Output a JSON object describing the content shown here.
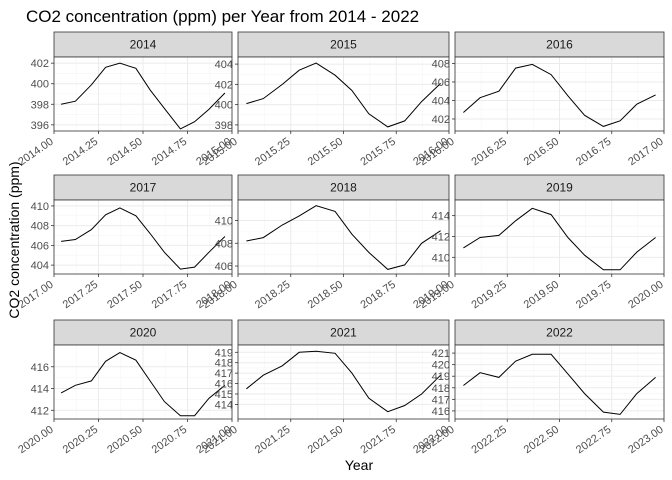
{
  "chart_data": {
    "type": "line",
    "title": "CO2 concentration (ppm) per Year from 2014 - 2022",
    "xlabel": "Year",
    "ylabel": "CO2 concentration (ppm)",
    "grid": true,
    "facets": [
      {
        "label": "2014",
        "xlim": [
          2014.0,
          2015.0
        ],
        "ylim": [
          395.4,
          402.6
        ],
        "xticks": [
          2014.0,
          2014.25,
          2014.5,
          2014.75,
          2015.0
        ],
        "xtick_labels": [
          "2014.00",
          "2014.25",
          "2014.50",
          "2014.75",
          "2015.00"
        ],
        "yticks": [
          396,
          398,
          400,
          402
        ],
        "x": [
          2014.04,
          2014.12,
          2014.21,
          2014.29,
          2014.37,
          2014.46,
          2014.54,
          2014.62,
          2014.71,
          2014.79,
          2014.87,
          2014.96
        ],
        "y": [
          398.0,
          398.3,
          399.9,
          401.6,
          402.0,
          401.5,
          399.4,
          397.6,
          395.6,
          396.3,
          397.5,
          399.1
        ]
      },
      {
        "label": "2015",
        "xlim": [
          2015.0,
          2016.0
        ],
        "ylim": [
          397.4,
          404.7
        ],
        "xticks": [
          2015.0,
          2015.25,
          2015.5,
          2015.75,
          2016.0
        ],
        "xtick_labels": [
          "2015.00",
          "2015.25",
          "2015.50",
          "2015.75",
          "2016.00"
        ],
        "yticks": [
          398,
          400,
          402,
          404
        ],
        "x": [
          2015.04,
          2015.12,
          2015.21,
          2015.29,
          2015.37,
          2015.46,
          2015.54,
          2015.62,
          2015.71,
          2015.79,
          2015.87,
          2015.96
        ],
        "y": [
          400.1,
          400.6,
          402.0,
          403.4,
          404.1,
          402.9,
          401.4,
          399.1,
          397.8,
          398.4,
          400.3,
          402.1
        ]
      },
      {
        "label": "2016",
        "xlim": [
          2016.0,
          2017.0
        ],
        "ylim": [
          400.7,
          408.7
        ],
        "xticks": [
          2016.0,
          2016.25,
          2016.5,
          2016.75,
          2017.0
        ],
        "xtick_labels": [
          "2016.00",
          "2016.25",
          "2016.50",
          "2016.75",
          "2017.00"
        ],
        "yticks": [
          402,
          404,
          406,
          408
        ],
        "x": [
          2016.04,
          2016.12,
          2016.21,
          2016.29,
          2016.37,
          2016.46,
          2016.54,
          2016.62,
          2016.71,
          2016.79,
          2016.87,
          2016.96
        ],
        "y": [
          402.7,
          404.3,
          405.0,
          407.5,
          407.9,
          406.8,
          404.5,
          402.4,
          401.2,
          401.8,
          403.6,
          404.6
        ]
      },
      {
        "label": "2017",
        "xlim": [
          2017.0,
          2018.0
        ],
        "ylim": [
          403.1,
          410.6
        ],
        "xticks": [
          2017.0,
          2017.25,
          2017.5,
          2017.75,
          2018.0
        ],
        "xtick_labels": [
          "2017.00",
          "2017.25",
          "2017.50",
          "2017.75",
          "2018.00"
        ],
        "yticks": [
          404,
          406,
          408,
          410
        ],
        "x": [
          2017.04,
          2017.12,
          2017.21,
          2017.29,
          2017.37,
          2017.46,
          2017.54,
          2017.62,
          2017.71,
          2017.79,
          2017.87,
          2017.96
        ],
        "y": [
          406.4,
          406.6,
          407.6,
          409.1,
          409.8,
          409.0,
          407.2,
          405.3,
          403.6,
          403.8,
          405.3,
          406.9
        ]
      },
      {
        "label": "2018",
        "xlim": [
          2018.0,
          2019.0
        ],
        "ylim": [
          405.3,
          411.8
        ],
        "xticks": [
          2018.0,
          2018.25,
          2018.5,
          2018.75,
          2019.0
        ],
        "xtick_labels": [
          "2018.00",
          "2018.25",
          "2018.50",
          "2018.75",
          "2019.00"
        ],
        "yticks": [
          406,
          408,
          410
        ],
        "x": [
          2018.04,
          2018.12,
          2018.21,
          2018.29,
          2018.37,
          2018.46,
          2018.54,
          2018.62,
          2018.71,
          2018.79,
          2018.87,
          2018.96
        ],
        "y": [
          408.2,
          408.5,
          409.6,
          410.4,
          411.3,
          410.8,
          408.8,
          407.2,
          405.7,
          406.1,
          408.0,
          409.1
        ]
      },
      {
        "label": "2019",
        "xlim": [
          2019.0,
          2020.0
        ],
        "ylim": [
          408.4,
          415.5
        ],
        "xticks": [
          2019.0,
          2019.25,
          2019.5,
          2019.75,
          2020.0
        ],
        "xtick_labels": [
          "2019.00",
          "2019.25",
          "2019.50",
          "2019.75",
          "2020.00"
        ],
        "yticks": [
          410,
          412,
          414
        ],
        "x": [
          2019.04,
          2019.12,
          2019.21,
          2019.29,
          2019.37,
          2019.46,
          2019.54,
          2019.62,
          2019.71,
          2019.79,
          2019.87,
          2019.96
        ],
        "y": [
          410.9,
          411.9,
          412.1,
          413.5,
          414.7,
          414.1,
          411.9,
          410.2,
          408.8,
          408.8,
          410.5,
          411.9
        ]
      },
      {
        "label": "2020",
        "xlim": [
          2020.0,
          2021.0
        ],
        "ylim": [
          411.2,
          418.0
        ],
        "xticks": [
          2020.0,
          2020.25,
          2020.5,
          2020.75,
          2021.0
        ],
        "xtick_labels": [
          "2020.00",
          "2020.25",
          "2020.50",
          "2020.75",
          "2021.00"
        ],
        "yticks": [
          412,
          414,
          416
        ],
        "x": [
          2020.04,
          2020.12,
          2020.21,
          2020.29,
          2020.37,
          2020.46,
          2020.54,
          2020.62,
          2020.71,
          2020.79,
          2020.87,
          2020.96
        ],
        "y": [
          413.6,
          414.3,
          414.7,
          416.5,
          417.3,
          416.6,
          414.7,
          412.8,
          411.5,
          411.5,
          413.1,
          414.3
        ]
      },
      {
        "label": "2021",
        "xlim": [
          2021.0,
          2022.0
        ],
        "ylim": [
          412.6,
          419.7
        ],
        "xticks": [
          2021.0,
          2021.25,
          2021.5,
          2021.75,
          2022.0
        ],
        "xtick_labels": [
          "2021.00",
          "2021.25",
          "2021.50",
          "2021.75",
          "2022.00"
        ],
        "yticks": [
          414,
          415,
          416,
          417,
          418,
          419
        ],
        "x": [
          2021.04,
          2021.12,
          2021.21,
          2021.29,
          2021.37,
          2021.46,
          2021.54,
          2021.62,
          2021.71,
          2021.79,
          2021.87,
          2021.96
        ],
        "y": [
          415.5,
          416.8,
          417.7,
          419.0,
          419.1,
          418.9,
          417.0,
          414.6,
          413.3,
          413.9,
          415.0,
          416.8
        ]
      },
      {
        "label": "2022",
        "xlim": [
          2022.0,
          2023.0
        ],
        "ylim": [
          415.3,
          421.7
        ],
        "xticks": [
          2022.0,
          2022.25,
          2022.5,
          2022.75,
          2023.0
        ],
        "xtick_labels": [
          "2022.00",
          "2022.25",
          "2022.50",
          "2022.75",
          "2023.00"
        ],
        "yticks": [
          416,
          417,
          418,
          419,
          420,
          421
        ],
        "x": [
          2022.04,
          2022.12,
          2022.21,
          2022.29,
          2022.37,
          2022.46,
          2022.54,
          2022.62,
          2022.71,
          2022.79,
          2022.87,
          2022.96
        ],
        "y": [
          418.2,
          419.3,
          418.9,
          420.3,
          420.9,
          420.9,
          419.2,
          417.5,
          415.9,
          415.7,
          417.5,
          418.9
        ]
      }
    ]
  }
}
